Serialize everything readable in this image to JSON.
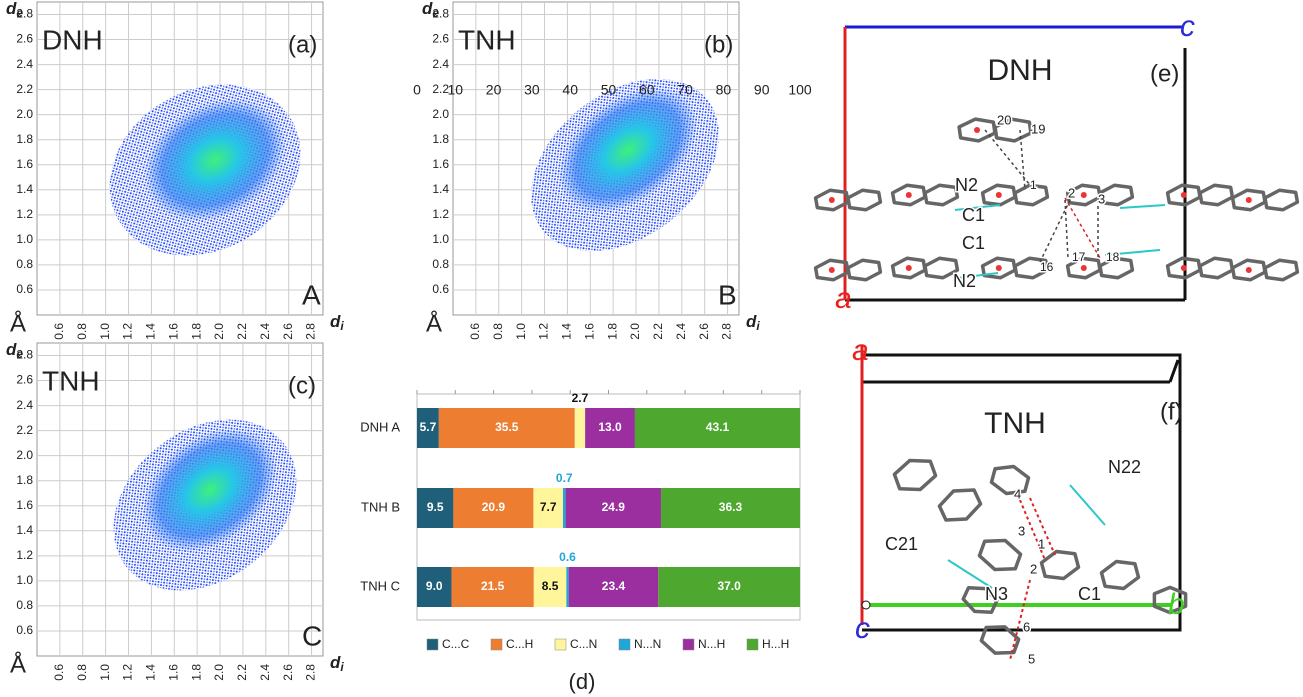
{
  "chart_data": [
    {
      "type": "fingerprint",
      "title": "DNH",
      "panel": "(a)",
      "tag": "A",
      "tag_color": "#e8211d",
      "y_label": "d",
      "y_label_sub": "e",
      "x_label": "d",
      "x_label_sub": "i",
      "unit": "Å",
      "xlim": [
        0.4,
        2.9
      ],
      "ylim": [
        0.4,
        2.9
      ],
      "xticks": [
        0.6,
        0.8,
        {
          "value": 1,
          "label": "1.0"
        },
        1.2,
        1.4,
        1.6,
        1.8,
        {
          "value": 2,
          "label": "2.0"
        },
        2.2,
        2.4,
        2.6,
        2.8
      ],
      "yticks": [
        0.6,
        0.8,
        {
          "value": 1,
          "label": "1.0"
        },
        1.2,
        1.4,
        1.6,
        1.8,
        {
          "value": 2,
          "label": "2.0"
        },
        2.2,
        2.4,
        2.6,
        2.8
      ],
      "grid": true
    },
    {
      "type": "fingerprint",
      "title": "TNH",
      "panel": "(b)",
      "tag": "B",
      "tag_color": "#2aa7e0",
      "y_label": "d",
      "y_label_sub": "e",
      "x_label": "d",
      "x_label_sub": "i",
      "unit": "Å",
      "xlim": [
        0.4,
        2.9
      ],
      "ylim": [
        0.4,
        2.9
      ],
      "xticks": [
        0.6,
        0.8,
        {
          "value": 1,
          "label": "1.0"
        },
        1.2,
        1.4,
        1.6,
        1.8,
        {
          "value": 2,
          "label": "2.0"
        },
        2.2,
        2.4,
        2.6,
        2.8
      ],
      "yticks": [
        0.6,
        0.8,
        {
          "value": 1,
          "label": "1.0"
        },
        1.2,
        1.4,
        1.6,
        1.8,
        {
          "value": 2,
          "label": "2.0"
        },
        2.2,
        2.4,
        2.6,
        2.8
      ],
      "grid": true
    },
    {
      "type": "fingerprint",
      "title": "TNH",
      "panel": "(c)",
      "tag": "C",
      "tag_color": "#2ea84a",
      "y_label": "d",
      "y_label_sub": "e",
      "x_label": "d",
      "x_label_sub": "i",
      "unit": "Å",
      "xlim": [
        0.4,
        2.9
      ],
      "ylim": [
        0.4,
        2.9
      ],
      "xticks": [
        0.6,
        0.8,
        {
          "value": 1,
          "label": "1.0"
        },
        1.2,
        1.4,
        1.6,
        1.8,
        {
          "value": 2,
          "label": "2.0"
        },
        2.2,
        2.4,
        2.6,
        2.8
      ],
      "yticks": [
        0.6,
        0.8,
        {
          "value": 1,
          "label": "1.0"
        },
        1.2,
        1.4,
        1.6,
        1.8,
        {
          "value": 2,
          "label": "2.0"
        },
        2.2,
        2.4,
        2.6,
        2.8
      ],
      "grid": true
    },
    {
      "type": "stacked-hbar",
      "panel": "(d)",
      "categories": [
        "DNH A",
        "TNH B",
        "TNH C"
      ],
      "xlim": [
        0,
        100
      ],
      "xticks": [
        0,
        10,
        20,
        30,
        40,
        50,
        60,
        70,
        80,
        90,
        100
      ],
      "series": [
        {
          "name": "C...C",
          "color": "#1f5f7a",
          "values": [
            5.7,
            9.5,
            9.0
          ],
          "value_labels": [
            "5.7",
            "9.5",
            "9.0"
          ]
        },
        {
          "name": "C...H",
          "color": "#ed7d31",
          "values": [
            35.5,
            20.9,
            21.5
          ],
          "value_labels": [
            "35.5",
            "20.9",
            "21.5"
          ]
        },
        {
          "name": "C...N",
          "color": "#fff59a",
          "values": [
            2.7,
            7.7,
            8.5
          ],
          "value_labels": [
            "2.7",
            "7.7",
            "8.5"
          ]
        },
        {
          "name": "N...N",
          "color": "#1ea7d8",
          "values": [
            0,
            0.7,
            0.6
          ],
          "value_labels": [
            null,
            "0.7",
            "0.6"
          ]
        },
        {
          "name": "N...H",
          "color": "#9b2fa0",
          "values": [
            13.0,
            24.9,
            23.4
          ],
          "value_labels": [
            "13.0",
            "24.9",
            "23.4"
          ]
        },
        {
          "name": "H...H",
          "color": "#4ea72e",
          "values": [
            43.1,
            36.3,
            37.0
          ],
          "value_labels": [
            "43.1",
            "36.3",
            "37.0"
          ]
        }
      ]
    }
  ],
  "structures": [
    {
      "title": "DNH",
      "panel": "(e)",
      "axis_labels": [
        {
          "label": "c",
          "color": "#2b2bd8"
        },
        {
          "label": "a",
          "color": "#e8211d"
        }
      ],
      "labels": [
        "N2",
        "C1",
        "C1",
        "N2",
        "20",
        "19",
        "1",
        "2",
        "3",
        "16",
        "17",
        "18"
      ]
    },
    {
      "title": "TNH",
      "panel": "(f)",
      "axis_labels": [
        {
          "label": "a",
          "color": "#e8211d"
        },
        {
          "label": "b",
          "color": "#3fcf20"
        },
        {
          "label": "c",
          "color": "#2b2bd8"
        }
      ],
      "labels": [
        "N22",
        "C21",
        "N3",
        "C1",
        "4",
        "3",
        "1",
        "2",
        "6",
        "5"
      ]
    }
  ]
}
